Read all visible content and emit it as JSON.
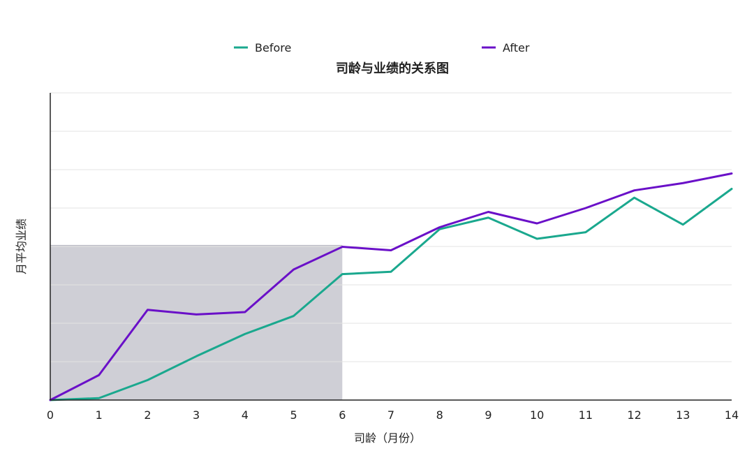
{
  "chart_data": {
    "type": "line",
    "title": "司龄与业绩的关系图",
    "xlabel": "司龄（月份）",
    "ylabel": "月平均业绩",
    "x": [
      0,
      1,
      2,
      3,
      4,
      5,
      6,
      7,
      8,
      9,
      10,
      11,
      12,
      13,
      14
    ],
    "xlim": [
      0,
      14
    ],
    "ylim": [
      0,
      8
    ],
    "grid": true,
    "legend_position": "top",
    "series": [
      {
        "name": "Before",
        "color": "#1aa88e",
        "values": [
          0,
          0.05,
          0.52,
          1.14,
          1.72,
          2.19,
          3.28,
          3.34,
          4.45,
          4.75,
          4.2,
          4.37,
          5.27,
          4.57,
          5.5
        ]
      },
      {
        "name": "After",
        "color": "#6a10c8",
        "values": [
          0,
          0.65,
          2.35,
          2.23,
          2.29,
          3.4,
          3.99,
          3.9,
          4.5,
          4.9,
          4.6,
          5.0,
          5.46,
          5.65,
          5.9
        ]
      }
    ],
    "highlight": {
      "x_from": 0,
      "x_to": 6,
      "y_from": 0,
      "y_to": 4.03,
      "color": "#cfcfd6"
    }
  }
}
